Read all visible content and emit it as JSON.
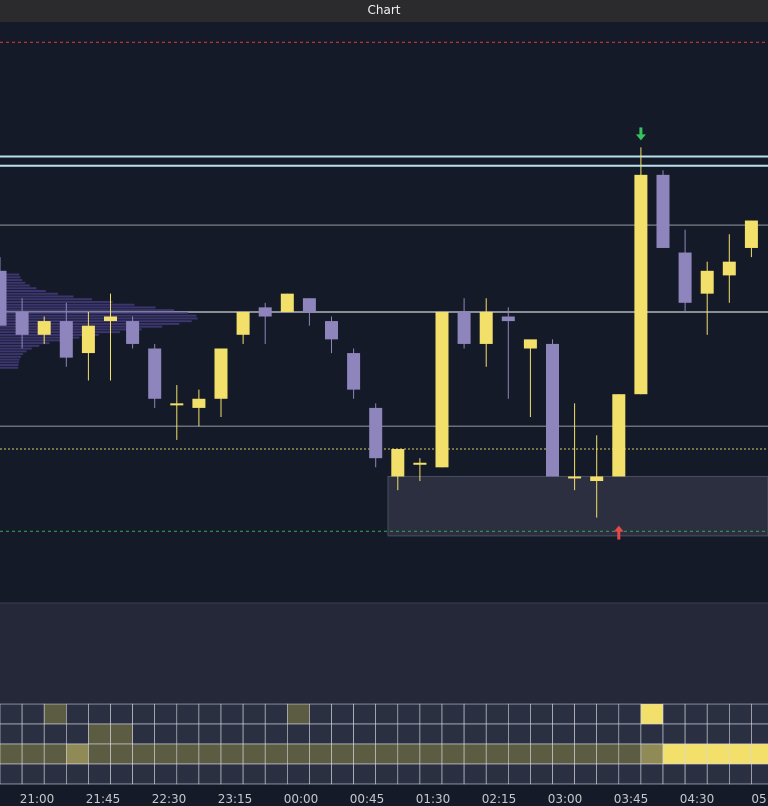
{
  "window": {
    "title": "Chart"
  },
  "colors": {
    "background": "#141a28",
    "bull": "#f2e06a",
    "bear": "#8f85bd",
    "resistance_line": "#cc3344",
    "support_line": "#2e9e4f",
    "mid_line": "#d8cf63",
    "key_level": "#b7e0ea",
    "level_line": "#6b6f78",
    "zone_fill": "#2c2f3f",
    "sell_arrow": "#35c35f",
    "buy_arrow": "#e24a4a"
  },
  "icons": {
    "sell_signal": "down-arrow-icon",
    "buy_signal": "up-arrow-icon"
  },
  "chart_data": {
    "type": "candlestick",
    "y_range": [
      0,
      100
    ],
    "x_labels": [
      "21:00",
      "21:45",
      "22:30",
      "23:15",
      "00:00",
      "00:45",
      "01:30",
      "02:15",
      "03:00",
      "03:45",
      "04:30",
      "05"
    ],
    "candles": [
      {
        "o": 67,
        "h": 70,
        "l": 55,
        "c": 55
      },
      {
        "o": 58,
        "h": 61,
        "l": 50,
        "c": 53
      },
      {
        "o": 53,
        "h": 57,
        "l": 51,
        "c": 56
      },
      {
        "o": 56,
        "h": 60,
        "l": 46,
        "c": 48
      },
      {
        "o": 49,
        "h": 58,
        "l": 43,
        "c": 55
      },
      {
        "o": 56,
        "h": 62,
        "l": 43,
        "c": 57
      },
      {
        "o": 56,
        "h": 57,
        "l": 50,
        "c": 51
      },
      {
        "o": 50,
        "h": 51,
        "l": 37,
        "c": 39
      },
      {
        "o": 38,
        "h": 42,
        "l": 30,
        "c": 38
      },
      {
        "o": 37,
        "h": 41,
        "l": 33,
        "c": 39
      },
      {
        "o": 39,
        "h": 50,
        "l": 35,
        "c": 50
      },
      {
        "o": 53,
        "h": 58,
        "l": 51,
        "c": 58
      },
      {
        "o": 59,
        "h": 60,
        "l": 51,
        "c": 57
      },
      {
        "o": 58,
        "h": 62,
        "l": 58,
        "c": 62
      },
      {
        "o": 61,
        "h": 61,
        "l": 55,
        "c": 58
      },
      {
        "o": 56,
        "h": 57,
        "l": 49,
        "c": 52
      },
      {
        "o": 49,
        "h": 50,
        "l": 39,
        "c": 41
      },
      {
        "o": 37,
        "h": 38,
        "l": 24,
        "c": 26
      },
      {
        "o": 22,
        "h": 28,
        "l": 19,
        "c": 28
      },
      {
        "o": 25,
        "h": 26,
        "l": 21,
        "c": 25
      },
      {
        "o": 24,
        "h": 58,
        "l": 24,
        "c": 58
      },
      {
        "o": 58,
        "h": 61,
        "l": 50,
        "c": 51
      },
      {
        "o": 51,
        "h": 61,
        "l": 46,
        "c": 58
      },
      {
        "o": 57,
        "h": 59,
        "l": 39,
        "c": 56
      },
      {
        "o": 50,
        "h": 51,
        "l": 35,
        "c": 52
      },
      {
        "o": 51,
        "h": 52,
        "l": 22,
        "c": 22
      },
      {
        "o": 22,
        "h": 38,
        "l": 19,
        "c": 22
      },
      {
        "o": 21,
        "h": 31,
        "l": 13,
        "c": 22
      },
      {
        "o": 22,
        "h": 40,
        "l": 22,
        "c": 40
      },
      {
        "o": 40,
        "h": 94,
        "l": 40,
        "c": 88
      },
      {
        "o": 88,
        "h": 89,
        "l": 72,
        "c": 72
      },
      {
        "o": 71,
        "h": 76,
        "l": 58,
        "c": 60
      },
      {
        "o": 62,
        "h": 69,
        "l": 53,
        "c": 67
      },
      {
        "o": 66,
        "h": 75,
        "l": 60,
        "c": 69
      },
      {
        "o": 72,
        "h": 78,
        "l": 70,
        "c": 78
      }
    ],
    "levels": [
      {
        "y": 117
      },
      {
        "y": 143
      },
      {
        "y": 92
      },
      {
        "y": 90
      },
      {
        "y": 77
      },
      {
        "y": 58
      },
      {
        "y": 33
      },
      {
        "y": 10
      }
    ],
    "zones": [
      {
        "y_top": 143,
        "y_bottom": 127
      },
      {
        "y_top": 22,
        "y_bottom": 9
      }
    ],
    "signals": [
      {
        "type": "sell",
        "candle": 29,
        "y": 94
      },
      {
        "type": "buy",
        "candle": 28,
        "y": 13
      }
    ],
    "heatmap": [
      [
        0,
        0,
        1,
        0,
        0,
        0,
        0,
        0,
        0,
        0,
        0,
        0,
        0,
        1,
        0,
        0,
        0,
        0,
        0,
        0,
        0,
        0,
        0,
        0,
        0,
        0,
        0,
        0,
        0,
        3,
        0,
        0,
        0,
        0,
        0
      ],
      [
        0,
        0,
        0,
        0,
        1,
        1,
        0,
        0,
        0,
        0,
        0,
        0,
        0,
        0,
        0,
        0,
        0,
        0,
        0,
        0,
        0,
        0,
        0,
        0,
        0,
        0,
        0,
        0,
        0,
        0,
        0,
        0,
        0,
        0,
        0
      ],
      [
        1,
        1,
        1,
        2,
        1,
        1,
        1,
        1,
        1,
        1,
        1,
        1,
        1,
        1,
        1,
        1,
        1,
        1,
        1,
        1,
        1,
        1,
        1,
        1,
        1,
        1,
        1,
        1,
        1,
        2,
        3,
        3,
        3,
        3,
        3
      ],
      [
        0,
        0,
        0,
        0,
        0,
        0,
        0,
        0,
        0,
        0,
        0,
        0,
        0,
        0,
        0,
        0,
        0,
        0,
        0,
        0,
        0,
        0,
        0,
        0,
        0,
        0,
        0,
        0,
        0,
        0,
        0,
        0,
        0,
        0,
        0
      ]
    ]
  }
}
